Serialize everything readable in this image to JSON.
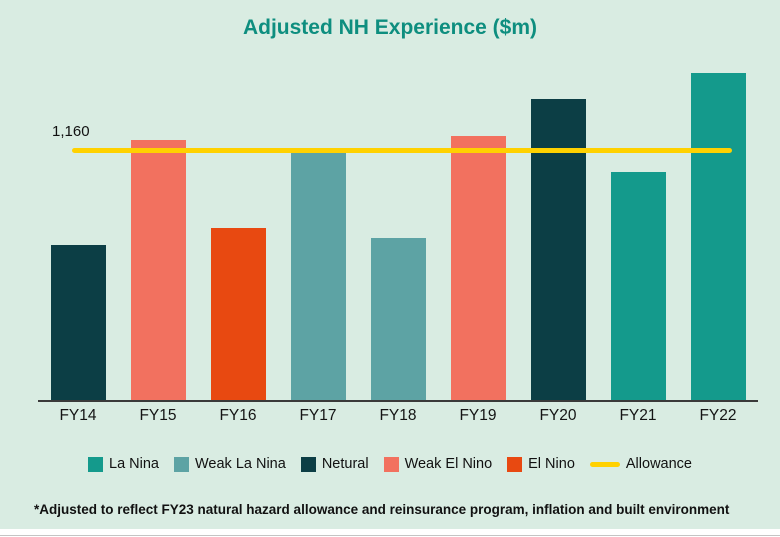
{
  "title": "Adjusted NH Experience ($m)",
  "allowance_label": "1,160",
  "footnote": "*Adjusted to reflect FY23 natural hazard allowance and reinsurance program, inflation and built environment",
  "colors": {
    "la_nina": "#149a8c",
    "weak_la_nina": "#5da3a4",
    "netural": "#0c3e45",
    "weak_el_nino": "#f2715f",
    "el_nino": "#e84911",
    "allowance": "#ffd100",
    "background": "#d9ece2",
    "title": "#0e8e7f"
  },
  "legend": [
    {
      "label": "La Nina",
      "color": "la_nina",
      "type": "square"
    },
    {
      "label": "Weak La Nina",
      "color": "weak_la_nina",
      "type": "square"
    },
    {
      "label": "Netural",
      "color": "netural",
      "type": "square"
    },
    {
      "label": "Weak El Nino",
      "color": "weak_el_nino",
      "type": "square"
    },
    {
      "label": "El Nino",
      "color": "el_nino",
      "type": "square"
    },
    {
      "label": "Allowance",
      "color": "allowance",
      "type": "line"
    }
  ],
  "chart_data": {
    "type": "bar",
    "title": "Adjusted NH Experience ($m)",
    "categories": [
      "FY14",
      "FY15",
      "FY16",
      "FY17",
      "FY18",
      "FY19",
      "FY20",
      "FY21",
      "FY22"
    ],
    "values": [
      720,
      1210,
      800,
      1150,
      755,
      1225,
      1400,
      1060,
      1520
    ],
    "bar_colors": [
      "netural",
      "weak_el_nino",
      "el_nino",
      "weak_la_nina",
      "weak_la_nina",
      "weak_el_nino",
      "netural",
      "la_nina",
      "la_nina"
    ],
    "allowance": 1160,
    "xlabel": "",
    "ylabel": "",
    "ylim": [
      0,
      1580
    ],
    "grid": false,
    "legend_position": "bottom"
  }
}
